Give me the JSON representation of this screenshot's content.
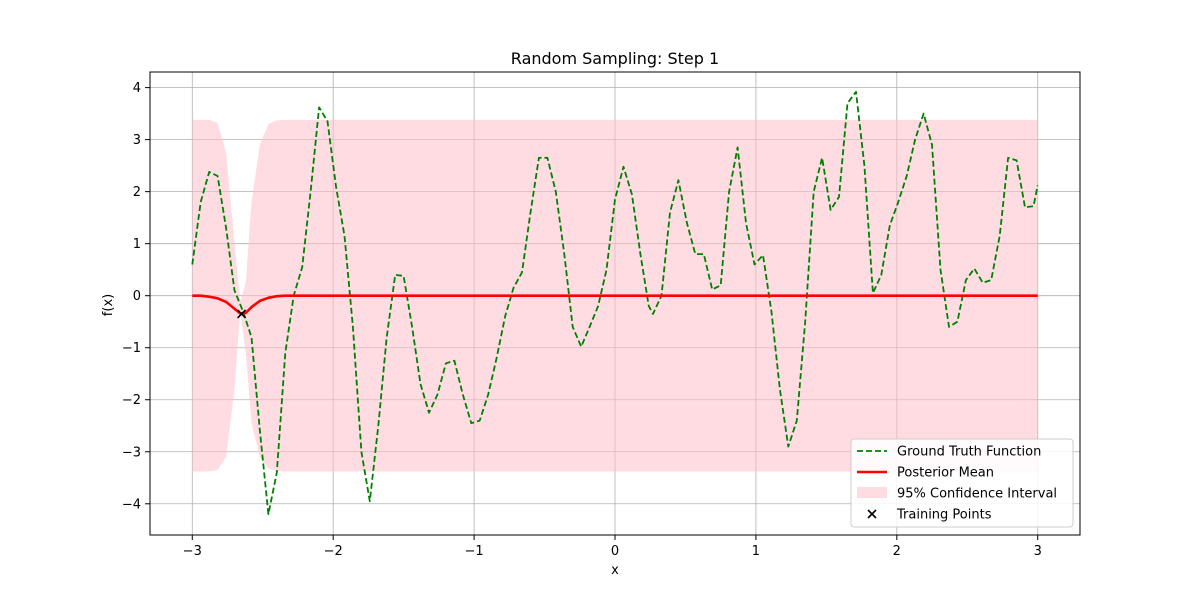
{
  "chart_data": {
    "type": "line",
    "title": "Random Sampling: Step 1",
    "xlabel": "x",
    "ylabel": "f(x)",
    "xlim": [
      -3.3,
      3.3
    ],
    "ylim": [
      -4.6,
      4.3
    ],
    "x_ticks": [
      -3,
      -2,
      -1,
      0,
      1,
      2,
      3
    ],
    "x_tick_labels": [
      "−3",
      "−2",
      "−1",
      "0",
      "1",
      "2",
      "3"
    ],
    "y_ticks": [
      -4,
      -3,
      -2,
      -1,
      0,
      1,
      2,
      3,
      4
    ],
    "y_tick_labels": [
      "−4",
      "−3",
      "−2",
      "−1",
      "0",
      "1",
      "2",
      "3",
      "4"
    ],
    "grid": true,
    "legend_position": "lower-right",
    "colors": {
      "ground_truth": "#008000",
      "posterior_mean": "#ff0000",
      "confidence": "#ffc0cb",
      "training": "#000000"
    },
    "legend": [
      {
        "label": "Ground Truth Function",
        "kind": "dashed-line",
        "color": "#008000"
      },
      {
        "label": "Posterior Mean",
        "kind": "line",
        "color": "#ff0000"
      },
      {
        "label": "95% Confidence Interval",
        "kind": "patch",
        "color": "#ffc0cb"
      },
      {
        "label": "Training Points",
        "kind": "marker-x",
        "color": "#000000"
      }
    ],
    "series": [
      {
        "name": "Ground Truth Function",
        "style": "dashed",
        "points": [
          [
            -3.0,
            0.6
          ],
          [
            -2.94,
            1.8
          ],
          [
            -2.88,
            2.38
          ],
          [
            -2.82,
            2.3
          ],
          [
            -2.76,
            1.3
          ],
          [
            -2.7,
            0.1
          ],
          [
            -2.64,
            -0.3
          ],
          [
            -2.58,
            -0.8
          ],
          [
            -2.52,
            -2.6
          ],
          [
            -2.46,
            -4.2
          ],
          [
            -2.4,
            -3.4
          ],
          [
            -2.34,
            -1.1
          ],
          [
            -2.28,
            0.0
          ],
          [
            -2.22,
            0.55
          ],
          [
            -2.16,
            2.0
          ],
          [
            -2.1,
            3.62
          ],
          [
            -2.04,
            3.35
          ],
          [
            -1.98,
            2.1
          ],
          [
            -1.92,
            1.15
          ],
          [
            -1.86,
            -0.6
          ],
          [
            -1.8,
            -3.0
          ],
          [
            -1.74,
            -3.95
          ],
          [
            -1.68,
            -2.5
          ],
          [
            -1.62,
            -0.8
          ],
          [
            -1.56,
            0.4
          ],
          [
            -1.5,
            0.38
          ],
          [
            -1.44,
            -0.6
          ],
          [
            -1.38,
            -1.7
          ],
          [
            -1.32,
            -2.25
          ],
          [
            -1.26,
            -1.9
          ],
          [
            -1.2,
            -1.3
          ],
          [
            -1.14,
            -1.25
          ],
          [
            -1.08,
            -1.9
          ],
          [
            -1.02,
            -2.45
          ],
          [
            -0.96,
            -2.4
          ],
          [
            -0.9,
            -1.9
          ],
          [
            -0.84,
            -1.2
          ],
          [
            -0.78,
            -0.4
          ],
          [
            -0.72,
            0.15
          ],
          [
            -0.66,
            0.45
          ],
          [
            -0.6,
            1.6
          ],
          [
            -0.54,
            2.65
          ],
          [
            -0.48,
            2.65
          ],
          [
            -0.42,
            2.0
          ],
          [
            -0.36,
            0.8
          ],
          [
            -0.3,
            -0.6
          ],
          [
            -0.24,
            -0.98
          ],
          [
            -0.18,
            -0.6
          ],
          [
            -0.12,
            -0.2
          ],
          [
            -0.06,
            0.5
          ],
          [
            0.0,
            1.85
          ],
          [
            0.06,
            2.48
          ],
          [
            0.12,
            1.95
          ],
          [
            0.18,
            0.8
          ],
          [
            0.24,
            -0.2
          ],
          [
            0.27,
            -0.35
          ],
          [
            0.33,
            0.0
          ],
          [
            0.39,
            1.6
          ],
          [
            0.45,
            2.22
          ],
          [
            0.51,
            1.4
          ],
          [
            0.57,
            0.8
          ],
          [
            0.63,
            0.8
          ],
          [
            0.69,
            0.12
          ],
          [
            0.75,
            0.2
          ],
          [
            0.81,
            2.0
          ],
          [
            0.87,
            2.85
          ],
          [
            0.93,
            1.4
          ],
          [
            0.99,
            0.6
          ],
          [
            1.05,
            0.78
          ],
          [
            1.11,
            -0.3
          ],
          [
            1.17,
            -1.8
          ],
          [
            1.23,
            -2.9
          ],
          [
            1.29,
            -2.4
          ],
          [
            1.35,
            -0.5
          ],
          [
            1.41,
            2.0
          ],
          [
            1.47,
            2.65
          ],
          [
            1.53,
            1.65
          ],
          [
            1.59,
            1.9
          ],
          [
            1.65,
            3.7
          ],
          [
            1.71,
            3.92
          ],
          [
            1.77,
            2.5
          ],
          [
            1.83,
            0.05
          ],
          [
            1.89,
            0.4
          ],
          [
            1.95,
            1.35
          ],
          [
            2.01,
            1.8
          ],
          [
            2.07,
            2.3
          ],
          [
            2.13,
            3.0
          ],
          [
            2.19,
            3.5
          ],
          [
            2.25,
            2.9
          ],
          [
            2.31,
            0.5
          ],
          [
            2.37,
            -0.6
          ],
          [
            2.43,
            -0.5
          ],
          [
            2.49,
            0.3
          ],
          [
            2.55,
            0.52
          ],
          [
            2.61,
            0.25
          ],
          [
            2.67,
            0.3
          ],
          [
            2.73,
            1.15
          ],
          [
            2.79,
            2.65
          ],
          [
            2.85,
            2.6
          ],
          [
            2.91,
            1.7
          ],
          [
            2.97,
            1.72
          ],
          [
            3.0,
            2.12
          ]
        ]
      },
      {
        "name": "Posterior Mean",
        "style": "solid",
        "points": [
          [
            -3.0,
            0.0
          ],
          [
            -2.94,
            0.0
          ],
          [
            -2.88,
            -0.02
          ],
          [
            -2.82,
            -0.05
          ],
          [
            -2.76,
            -0.12
          ],
          [
            -2.7,
            -0.25
          ],
          [
            -2.66,
            -0.34
          ],
          [
            -2.62,
            -0.33
          ],
          [
            -2.58,
            -0.22
          ],
          [
            -2.52,
            -0.1
          ],
          [
            -2.46,
            -0.04
          ],
          [
            -2.4,
            -0.01
          ],
          [
            -2.34,
            0.0
          ],
          [
            -2.2,
            0.0
          ],
          [
            3.0,
            0.0
          ]
        ]
      }
    ],
    "confidence_interval": {
      "name": "95% Confidence Interval",
      "x": [
        -3.0,
        -2.94,
        -2.88,
        -2.82,
        -2.76,
        -2.7,
        -2.66,
        -2.62,
        -2.58,
        -2.52,
        -2.46,
        -2.4,
        -2.34,
        -2.28,
        -2.2,
        3.0
      ],
      "upper": [
        3.38,
        3.38,
        3.38,
        3.32,
        2.75,
        1.0,
        -0.1,
        0.25,
        1.8,
        2.9,
        3.3,
        3.37,
        3.38,
        3.38,
        3.38,
        3.38
      ],
      "lower": [
        -3.38,
        -3.38,
        -3.38,
        -3.35,
        -3.1,
        -1.8,
        -0.3,
        -1.1,
        -2.45,
        -3.1,
        -3.32,
        -3.37,
        -3.38,
        -3.38,
        -3.38,
        -3.38
      ]
    },
    "training_points": [
      [
        -2.65,
        -0.35
      ]
    ]
  }
}
